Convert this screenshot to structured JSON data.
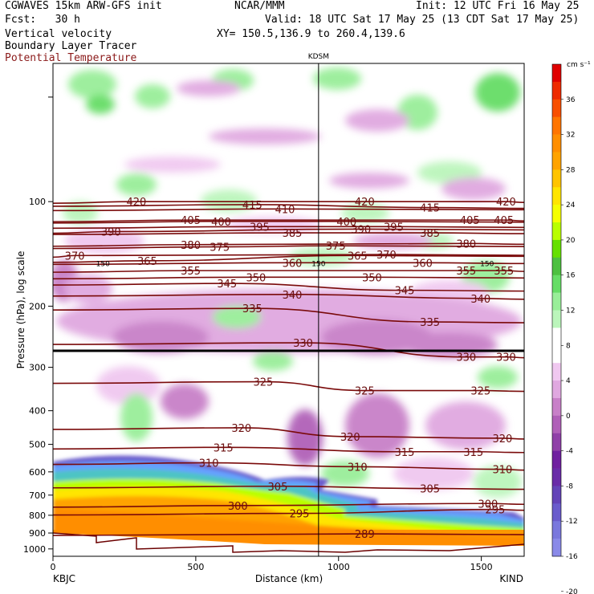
{
  "header": {
    "model": "CGWAVES 15km ARW-GFS init",
    "fcst": "Fcst:   30 h",
    "org": "NCAR/MMM",
    "init": "Init: 12 UTC Fri 16 May 25",
    "valid": "Valid: 18 UTC Sat 17 May 25 (13 CDT Sat 17 May 25)",
    "xy": "XY= 150.5,136.9 to 260.4,139.6",
    "fields": [
      "Vertical velocity",
      "Boundary Layer Tracer",
      "Potential Temperature"
    ]
  },
  "colors": {
    "theta": "#7a0a0a",
    "text_potential": "#8b1a1a"
  },
  "chart_data": {
    "type": "heatmap",
    "xlabel": "Distance (km)",
    "ylabel": "Pressure (hPa), log scale",
    "x_range": [
      0,
      1650
    ],
    "y_range": [
      1050,
      40
    ],
    "y_scale": "log",
    "x_ticks": [
      0,
      500,
      1000,
      1500
    ],
    "y_ticks": [
      100,
      200,
      300,
      400,
      500,
      600,
      700,
      800,
      900,
      1000
    ],
    "start_label": "KBJC",
    "end_label": "KIND",
    "marker": {
      "x": 930,
      "label": "KDSM"
    },
    "colorbar": {
      "unit": "cm s⁻¹",
      "ticks": [
        36,
        32,
        28,
        24,
        20,
        16,
        12,
        8,
        4,
        0,
        -4,
        -8,
        -12,
        -16,
        -20
      ],
      "colors": [
        "#e00000",
        "#ee2a00",
        "#f84f00",
        "#ff7500",
        "#ff8e00",
        "#ffa300",
        "#ffc400",
        "#ffe500",
        "#f5ff00",
        "#b9ff00",
        "#66e000",
        "#4dc040",
        "#66dd66",
        "#99ee99",
        "#bbf5bb",
        "#ffffff",
        "#ffffff",
        "#f0c8f0",
        "#e0a8e0",
        "#c880c8",
        "#b060b8",
        "#9040a8",
        "#7020a0",
        "#6a2ca8",
        "#6444b8",
        "#6a5ccc",
        "#7a78dd",
        "#8a8ae8"
      ]
    },
    "theta_contours": [
      {
        "value": 420,
        "labels": [
          [
            115,
            100
          ],
          [
            430,
            100
          ],
          [
            625,
            100
          ]
        ]
      },
      {
        "value": 415,
        "labels": [
          [
            275,
            102
          ],
          [
            520,
            104
          ]
        ]
      },
      {
        "value": 410,
        "labels": [
          [
            320,
            105
          ]
        ]
      },
      {
        "value": 405,
        "labels": [
          [
            190,
            113
          ],
          [
            575,
            113
          ],
          [
            622,
            113
          ]
        ]
      },
      {
        "value": 400,
        "labels": [
          [
            232,
            114
          ],
          [
            405,
            114
          ]
        ]
      },
      {
        "value": 395,
        "labels": [
          [
            285,
            118
          ],
          [
            470,
            118
          ]
        ]
      },
      {
        "value": 390,
        "labels": [
          [
            80,
            122
          ],
          [
            425,
            120
          ]
        ]
      },
      {
        "value": 385,
        "labels": [
          [
            330,
            123
          ],
          [
            520,
            123
          ]
        ]
      },
      {
        "value": 380,
        "labels": [
          [
            190,
            133
          ],
          [
            570,
            132
          ]
        ]
      },
      {
        "value": 375,
        "labels": [
          [
            230,
            135
          ],
          [
            390,
            134
          ]
        ]
      },
      {
        "value": 370,
        "labels": [
          [
            30,
            143
          ],
          [
            460,
            142
          ]
        ]
      },
      {
        "value": 365,
        "labels": [
          [
            130,
            148
          ],
          [
            420,
            143
          ]
        ]
      },
      {
        "value": 360,
        "labels": [
          [
            330,
            150
          ],
          [
            510,
            150
          ]
        ]
      },
      {
        "value": 355,
        "labels": [
          [
            190,
            158
          ],
          [
            570,
            158
          ],
          [
            622,
            158
          ]
        ]
      },
      {
        "value": 350,
        "labels": [
          [
            280,
            165
          ],
          [
            440,
            165
          ]
        ]
      },
      {
        "value": 345,
        "labels": [
          [
            240,
            172
          ],
          [
            485,
            180
          ]
        ]
      },
      {
        "value": 340,
        "labels": [
          [
            330,
            185
          ],
          [
            590,
            190
          ]
        ]
      },
      {
        "value": 335,
        "labels": [
          [
            275,
            203
          ],
          [
            520,
            222
          ]
        ]
      },
      {
        "value": 330,
        "labels": [
          [
            345,
            255
          ],
          [
            570,
            280
          ],
          [
            625,
            280
          ]
        ]
      },
      {
        "value": 325,
        "labels": [
          [
            290,
            330
          ],
          [
            430,
            350
          ],
          [
            590,
            350
          ]
        ]
      },
      {
        "value": 320,
        "labels": [
          [
            260,
            448
          ],
          [
            410,
            475
          ],
          [
            620,
            480
          ]
        ]
      },
      {
        "value": 315,
        "labels": [
          [
            235,
            510
          ],
          [
            485,
            525
          ],
          [
            580,
            525
          ]
        ]
      },
      {
        "value": 310,
        "labels": [
          [
            215,
            565
          ],
          [
            420,
            580
          ],
          [
            620,
            590
          ]
        ]
      },
      {
        "value": 305,
        "labels": [
          [
            310,
            660
          ],
          [
            520,
            670
          ]
        ]
      },
      {
        "value": 300,
        "labels": [
          [
            255,
            750
          ],
          [
            600,
            740
          ]
        ]
      },
      {
        "value": 295,
        "labels": [
          [
            340,
            790
          ],
          [
            610,
            770
          ]
        ]
      },
      {
        "value": 289,
        "labels": [
          [
            430,
            905
          ]
        ]
      }
    ],
    "tropopause_line": {
      "pressure": 150,
      "labels": [
        [
          175,
          150
        ],
        [
          930,
          150
        ],
        [
          1520,
          150
        ]
      ]
    }
  }
}
